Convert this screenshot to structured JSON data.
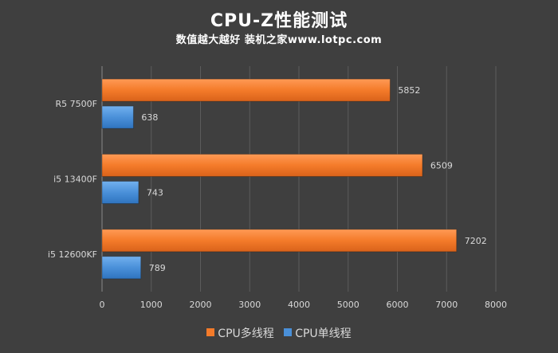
{
  "chart_data": {
    "type": "bar",
    "orientation": "horizontal",
    "title": "CPU-Z性能测试",
    "subtitle": "数值越大越好 装机之家www.lotpc.com",
    "categories": [
      "R5 7500F",
      "i5 13400F",
      "i5 12600KF"
    ],
    "series": [
      {
        "name": "CPU多线程",
        "color": "#f47b2a",
        "values": [
          5852,
          6509,
          7202
        ]
      },
      {
        "name": "CPU单线程",
        "color": "#4a90d9",
        "values": [
          638,
          743,
          789
        ]
      }
    ],
    "xlim": [
      0,
      8000
    ],
    "xticks": [
      "0",
      "1000",
      "2000",
      "3000",
      "4000",
      "5000",
      "6000",
      "7000",
      "8000"
    ],
    "grid": true,
    "legend_position": "bottom"
  }
}
